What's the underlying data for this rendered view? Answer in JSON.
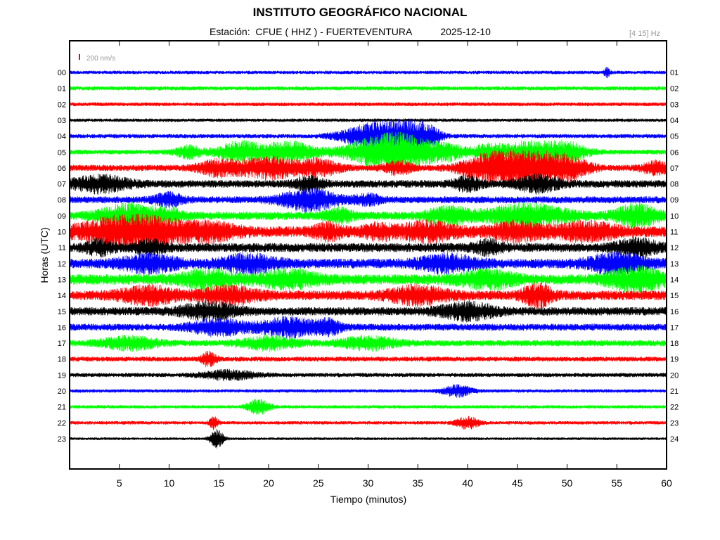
{
  "header": {
    "title": "INSTITUTO GEOGRÁFICO NACIONAL",
    "station_label": "Estación:  CFUE ( HHZ ) - FUERTEVENTURA",
    "date": "2025-12-10",
    "freq_band": "[4 15] Hz"
  },
  "colors": {
    "series": [
      "#0000ff",
      "#00ff00",
      "#ff0000",
      "#000000"
    ],
    "scale_bar": "#ff0000",
    "axis": "#000000",
    "freq_text": "#999999"
  },
  "chart_data": {
    "type": "line",
    "title": "INSTITUTO GEOGRÁFICO NACIONAL",
    "xlabel": "Tiempo (minutos)",
    "ylabel": "Horas (UTC)",
    "xlim": [
      0,
      60
    ],
    "x_ticks": [
      "5",
      "10",
      "15",
      "20",
      "25",
      "30",
      "35",
      "40",
      "45",
      "50",
      "55",
      "60"
    ],
    "x_tick_values": [
      5,
      10,
      15,
      20,
      25,
      30,
      35,
      40,
      45,
      50,
      55,
      60
    ],
    "left_hour_labels": [
      "00",
      "01",
      "02",
      "03",
      "04",
      "05",
      "06",
      "07",
      "08",
      "09",
      "10",
      "11",
      "12",
      "13",
      "14",
      "15",
      "16",
      "17",
      "18",
      "19",
      "20",
      "21",
      "22",
      "23"
    ],
    "right_hour_labels": [
      "01",
      "02",
      "03",
      "04",
      "05",
      "06",
      "07",
      "08",
      "09",
      "10",
      "11",
      "12",
      "13",
      "14",
      "15",
      "16",
      "17",
      "18",
      "19",
      "20",
      "21",
      "22",
      "23",
      "24"
    ],
    "scale_label": "200 nm/s",
    "grid": false,
    "traces": [
      {
        "hour": 0,
        "noise": 2.5,
        "bursts": [
          [
            54,
            0.2,
            6
          ]
        ]
      },
      {
        "hour": 1,
        "noise": 3.0,
        "bursts": []
      },
      {
        "hour": 2,
        "noise": 2.8,
        "bursts": []
      },
      {
        "hour": 3,
        "noise": 2.5,
        "bursts": []
      },
      {
        "hour": 4,
        "noise": 3.0,
        "bursts": [
          [
            31,
            2.5,
            18
          ],
          [
            34,
            1.5,
            12
          ],
          [
            36,
            1,
            10
          ]
        ]
      },
      {
        "hour": 5,
        "noise": 3.5,
        "bursts": [
          [
            12,
            1,
            8
          ],
          [
            17,
            1.5,
            14
          ],
          [
            22,
            2,
            14
          ],
          [
            31,
            2.5,
            18
          ],
          [
            34,
            2,
            14
          ],
          [
            38,
            1.5,
            10
          ],
          [
            42,
            1,
            10
          ],
          [
            46,
            2,
            14
          ],
          [
            50,
            1.5,
            12
          ]
        ]
      },
      {
        "hour": 6,
        "noise": 4.5,
        "bursts": [
          [
            15,
            1.5,
            10
          ],
          [
            20,
            2,
            14
          ],
          [
            25,
            1.5,
            10
          ],
          [
            33,
            1,
            8
          ],
          [
            42,
            2,
            12
          ],
          [
            46,
            3,
            20
          ],
          [
            50,
            1.5,
            10
          ],
          [
            59,
            1,
            8
          ]
        ]
      },
      {
        "hour": 7,
        "noise": 5.5,
        "bursts": [
          [
            3,
            2,
            10
          ],
          [
            24,
            1,
            8
          ],
          [
            40,
            1,
            8
          ],
          [
            47,
            1.5,
            10
          ]
        ]
      },
      {
        "hour": 8,
        "noise": 5.0,
        "bursts": [
          [
            24,
            2,
            14
          ],
          [
            10,
            1,
            8
          ],
          [
            30,
            1,
            6
          ]
        ]
      },
      {
        "hour": 9,
        "noise": 6.0,
        "bursts": [
          [
            6,
            2,
            14
          ],
          [
            10,
            1,
            8
          ],
          [
            27,
            1,
            8
          ],
          [
            38,
            1.5,
            10
          ],
          [
            46,
            3,
            14
          ],
          [
            57,
            1.5,
            14
          ]
        ]
      },
      {
        "hour": 10,
        "noise": 8.0,
        "bursts": [
          [
            5,
            3,
            16
          ],
          [
            9,
            2,
            10
          ],
          [
            14,
            2,
            10
          ],
          [
            26,
            1,
            8
          ],
          [
            31,
            1,
            8
          ],
          [
            36,
            2,
            10
          ],
          [
            45,
            2,
            10
          ],
          [
            52,
            2,
            10
          ]
        ]
      },
      {
        "hour": 11,
        "noise": 6.5,
        "bursts": [
          [
            3,
            1,
            8
          ],
          [
            8,
            1,
            8
          ],
          [
            42,
            1,
            8
          ],
          [
            57,
            1.5,
            10
          ]
        ]
      },
      {
        "hour": 12,
        "noise": 7.0,
        "bursts": [
          [
            8,
            2,
            10
          ],
          [
            18,
            2,
            10
          ],
          [
            38,
            2,
            10
          ],
          [
            55,
            2,
            12
          ]
        ]
      },
      {
        "hour": 13,
        "noise": 7.5,
        "bursts": [
          [
            14,
            2,
            10
          ],
          [
            22,
            2,
            10
          ],
          [
            42,
            2,
            10
          ],
          [
            57,
            2,
            14
          ]
        ]
      },
      {
        "hour": 14,
        "noise": 7.0,
        "bursts": [
          [
            8,
            2,
            10
          ],
          [
            16,
            2,
            10
          ],
          [
            35,
            2,
            10
          ],
          [
            47,
            1,
            14
          ]
        ]
      },
      {
        "hour": 15,
        "noise": 6.0,
        "bursts": [
          [
            14,
            2,
            10
          ],
          [
            40,
            2,
            10
          ]
        ]
      },
      {
        "hour": 16,
        "noise": 5.0,
        "bursts": [
          [
            15,
            2,
            10
          ],
          [
            22,
            2,
            12
          ],
          [
            26,
            1,
            8
          ]
        ]
      },
      {
        "hour": 17,
        "noise": 4.5,
        "bursts": [
          [
            6,
            2,
            8
          ],
          [
            20,
            2,
            8
          ],
          [
            30,
            2,
            8
          ]
        ]
      },
      {
        "hour": 18,
        "noise": 3.5,
        "bursts": [
          [
            14,
            0.5,
            10
          ]
        ]
      },
      {
        "hour": 19,
        "noise": 3.0,
        "bursts": [
          [
            16,
            2,
            6
          ]
        ]
      },
      {
        "hour": 20,
        "noise": 2.5,
        "bursts": [
          [
            39,
            1,
            8
          ]
        ]
      },
      {
        "hour": 21,
        "noise": 2.5,
        "bursts": [
          [
            19,
            0.8,
            10
          ]
        ]
      },
      {
        "hour": 22,
        "noise": 2.5,
        "bursts": [
          [
            14.5,
            0.3,
            8
          ],
          [
            40,
            0.8,
            8
          ]
        ]
      },
      {
        "hour": 23,
        "noise": 2.0,
        "bursts": [
          [
            14.8,
            0.5,
            12
          ]
        ]
      }
    ]
  }
}
